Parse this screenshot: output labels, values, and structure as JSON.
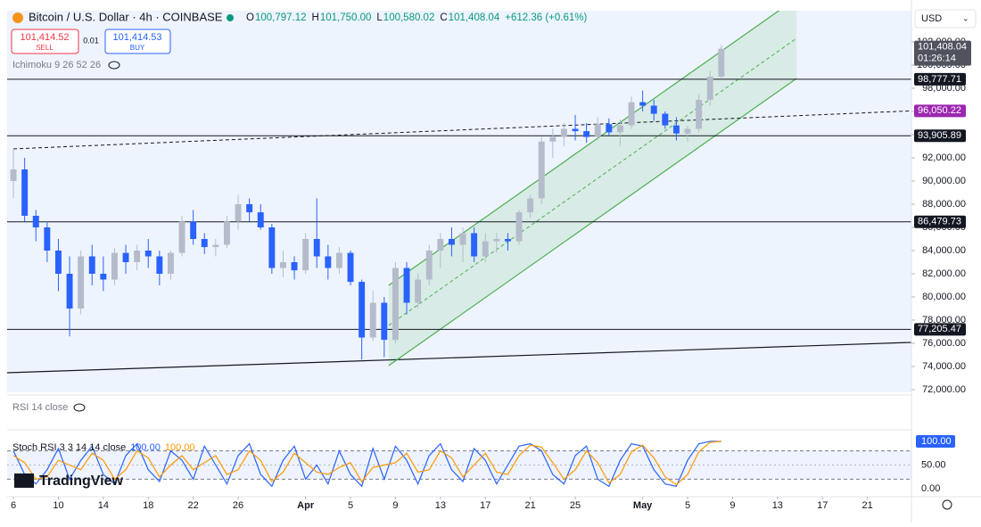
{
  "header": {
    "symbol": "Bitcoin / U.S. Dollar · 4h · COINBASE",
    "ohlc": [
      {
        "key": "O",
        "value": "100,797.12"
      },
      {
        "key": "H",
        "value": "101,750.00"
      },
      {
        "key": "L",
        "value": "100,580.02"
      },
      {
        "key": "C",
        "value": "101,408.04"
      }
    ],
    "change": "+612.36 (+0.61%)",
    "sell": {
      "price": "101,414.52",
      "label": "SELL"
    },
    "spread": "0.01",
    "buy": {
      "price": "101,414.53",
      "label": "BUY"
    },
    "indicator": "Ichimoku 9 26 52 26",
    "currency": "USD",
    "rsi_label": "RSI 14 close",
    "logo": "TradingView"
  },
  "chart_data": [
    {
      "type": "candlestick",
      "up_color": "#b4bccb",
      "down_color": "#2962ff",
      "x": [
        0,
        1,
        2,
        3,
        4,
        5,
        6,
        7,
        8,
        9,
        10,
        11,
        12,
        13,
        14,
        15,
        16,
        17,
        18,
        19,
        20,
        21,
        22,
        23,
        24,
        25,
        26,
        27,
        28,
        29,
        30,
        31,
        32,
        33,
        34,
        35,
        36,
        37,
        38,
        39,
        40,
        41,
        42,
        43,
        44,
        45,
        46,
        47,
        48,
        49,
        50,
        51,
        52,
        53,
        54,
        55,
        56,
        57,
        58,
        59,
        60,
        61,
        62,
        63
      ],
      "open": [
        90000,
        91000,
        87000,
        86000,
        84000,
        82000,
        79000,
        83500,
        82000,
        81500,
        83800,
        83000,
        84000,
        83500,
        82000,
        83800,
        86500,
        85000,
        84300,
        84500,
        86500,
        88000,
        87300,
        86000,
        82500,
        83000,
        82300,
        85000,
        83500,
        82500,
        83800,
        81300,
        76500,
        79500,
        76300,
        82500,
        79500,
        81500,
        84000,
        85000,
        84500,
        85500,
        83500,
        84800,
        85000,
        84800,
        87300,
        88500,
        93400,
        93800,
        94500,
        94300,
        93800,
        94900,
        94200,
        94800,
        96800,
        96500,
        95800,
        94800,
        94100,
        94500,
        97000,
        99000
      ],
      "high": [
        92700,
        92000,
        87500,
        86500,
        85000,
        83500,
        84000,
        84500,
        83500,
        84200,
        84500,
        84500,
        85000,
        84000,
        84000,
        87000,
        87500,
        85500,
        85000,
        87000,
        88800,
        88500,
        88000,
        86300,
        84000,
        83500,
        85500,
        88500,
        84500,
        84300,
        84000,
        81500,
        80500,
        80000,
        83000,
        83000,
        82000,
        84500,
        85500,
        86000,
        86000,
        86000,
        85500,
        85500,
        85500,
        87500,
        88800,
        93800,
        94500,
        95000,
        95700,
        95000,
        95500,
        95400,
        95300,
        97300,
        97800,
        97000,
        96000,
        95500,
        94800,
        97500,
        99500,
        101750
      ],
      "low": [
        88500,
        86500,
        84800,
        83000,
        80500,
        76600,
        78500,
        81000,
        80500,
        81000,
        82000,
        82300,
        82500,
        81000,
        81500,
        83500,
        84500,
        83700,
        83500,
        84200,
        85800,
        86500,
        85800,
        82000,
        81700,
        81500,
        82000,
        82500,
        81500,
        82000,
        81000,
        74600,
        76200,
        74800,
        76000,
        78500,
        79000,
        81000,
        82500,
        83500,
        83000,
        83000,
        83000,
        83800,
        84000,
        84500,
        86800,
        88000,
        92000,
        93000,
        93500,
        93300,
        93500,
        93900,
        93000,
        94500,
        96000,
        95200,
        94500,
        93500,
        93400,
        94200,
        96500,
        98800
      ],
      "close": [
        91000,
        87000,
        86000,
        84000,
        82000,
        79000,
        83500,
        82000,
        81500,
        83800,
        83000,
        84000,
        83500,
        82000,
        83800,
        86500,
        85000,
        84300,
        84500,
        86500,
        88000,
        87300,
        86000,
        82500,
        83000,
        82300,
        85000,
        83500,
        82500,
        83800,
        81300,
        76500,
        79500,
        76300,
        82500,
        79500,
        81500,
        84000,
        85000,
        84500,
        85500,
        83500,
        84800,
        85000,
        84800,
        87300,
        88500,
        93400,
        93800,
        94500,
        94300,
        93800,
        94900,
        94200,
        94800,
        96800,
        96500,
        95800,
        94800,
        94100,
        94500,
        97000,
        99000,
        101408.04
      ],
      "xlim": [
        -0.56,
        79.92
      ],
      "ylim": [
        71770,
        104690
      ],
      "yticks": [
        {
          "value": 72000,
          "label": "72,000.00"
        },
        {
          "value": 74000,
          "label": "74,000.00"
        },
        {
          "value": 76000,
          "label": "76,000.00"
        },
        {
          "value": 78000,
          "label": "78,000.00"
        },
        {
          "value": 80000,
          "label": "80,000.00"
        },
        {
          "value": 82000,
          "label": "82,000.00"
        },
        {
          "value": 84000,
          "label": "84,000.00"
        },
        {
          "value": 86000,
          "label": "86,000.00"
        },
        {
          "value": 88000,
          "label": "88,000.00"
        },
        {
          "value": 90000,
          "label": "90,000.00"
        },
        {
          "value": 92000,
          "label": "92,000.00"
        },
        {
          "value": 94000,
          "label": "94,000.00"
        },
        {
          "value": 96000,
          "label": "96,000.00"
        },
        {
          "value": 98000,
          "label": "98,000.00"
        },
        {
          "value": 100000,
          "label": "100,000.00"
        },
        {
          "value": 102000,
          "label": "102,000.00"
        }
      ],
      "xticks": [
        {
          "value": 0,
          "label": "6"
        },
        {
          "value": 4,
          "label": "10"
        },
        {
          "value": 8,
          "label": "14"
        },
        {
          "value": 12,
          "label": "18"
        },
        {
          "value": 16,
          "label": "22"
        },
        {
          "value": 20,
          "label": "26"
        },
        {
          "value": 26,
          "label": "Apr"
        },
        {
          "value": 30,
          "label": "5"
        },
        {
          "value": 34,
          "label": "9"
        },
        {
          "value": 38,
          "label": "13"
        },
        {
          "value": 42,
          "label": "17"
        },
        {
          "value": 46,
          "label": "21"
        },
        {
          "value": 50,
          "label": "25"
        },
        {
          "value": 56,
          "label": "May"
        },
        {
          "value": 60,
          "label": "5"
        },
        {
          "value": 64,
          "label": "9"
        },
        {
          "value": 68,
          "label": "13"
        },
        {
          "value": 72,
          "label": "17"
        },
        {
          "value": 76,
          "label": "21"
        }
      ],
      "last_price": {
        "value": 101408.04,
        "label": "101,408.04",
        "countdown": "01:26:14"
      },
      "levels": [
        {
          "value": 98777.71,
          "label": "98,777.71"
        },
        {
          "value": 93905.89,
          "label": "93,905.89"
        },
        {
          "value": 86479.73,
          "label": "86,479.73"
        },
        {
          "value": 77205.47,
          "label": "77,205.47"
        }
      ],
      "dashed_level": {
        "x": [
          0,
          79.92
        ],
        "y": [
          92770,
          96050.22
        ],
        "label": "96,050.22",
        "color": "#9c27b0"
      },
      "trendline": {
        "x": [
          -0.56,
          79.92
        ],
        "y": [
          73460,
          76080
        ]
      },
      "channel": {
        "color": "#4caf50",
        "x": [
          33.4,
          69.7
        ],
        "lower": [
          74080,
          98850
        ],
        "upper": [
          81000,
          105770
        ]
      }
    },
    {
      "type": "line",
      "title": "Stoch RSI 3 3 14 14 close",
      "ylim": [
        0,
        100
      ],
      "bands": [
        20,
        80
      ],
      "yticks": [
        {
          "value": 100,
          "label": "100.00"
        },
        {
          "value": 50,
          "label": "50.00"
        },
        {
          "value": 0,
          "label": "0.00"
        }
      ],
      "series": [
        {
          "color": "#2962ff",
          "last_label": "100.00",
          "values": [
            80,
            30,
            10,
            40,
            85,
            20,
            60,
            90,
            30,
            10,
            70,
            95,
            40,
            15,
            80,
            60,
            20,
            90,
            50,
            10,
            70,
            95,
            30,
            5,
            60,
            90,
            20,
            50,
            10,
            80,
            30,
            5,
            85,
            20,
            90,
            60,
            10,
            70,
            95,
            40,
            15,
            85,
            60,
            10,
            50,
            90,
            95,
            80,
            30,
            10,
            70,
            90,
            20,
            5,
            60,
            95,
            90,
            40,
            10,
            5,
            60,
            95,
            100,
            100
          ]
        },
        {
          "color": "#ff9800",
          "last_label": "100.00",
          "values": [
            70,
            55,
            20,
            25,
            60,
            50,
            40,
            75,
            60,
            20,
            40,
            80,
            65,
            25,
            50,
            70,
            40,
            55,
            70,
            30,
            40,
            80,
            60,
            15,
            35,
            75,
            55,
            35,
            30,
            45,
            55,
            15,
            45,
            50,
            55,
            75,
            35,
            40,
            80,
            65,
            25,
            50,
            75,
            35,
            30,
            70,
            92,
            88,
            55,
            20,
            40,
            80,
            55,
            12,
            30,
            78,
            92,
            65,
            25,
            8,
            30,
            78,
            98,
            100
          ]
        }
      ]
    }
  ]
}
